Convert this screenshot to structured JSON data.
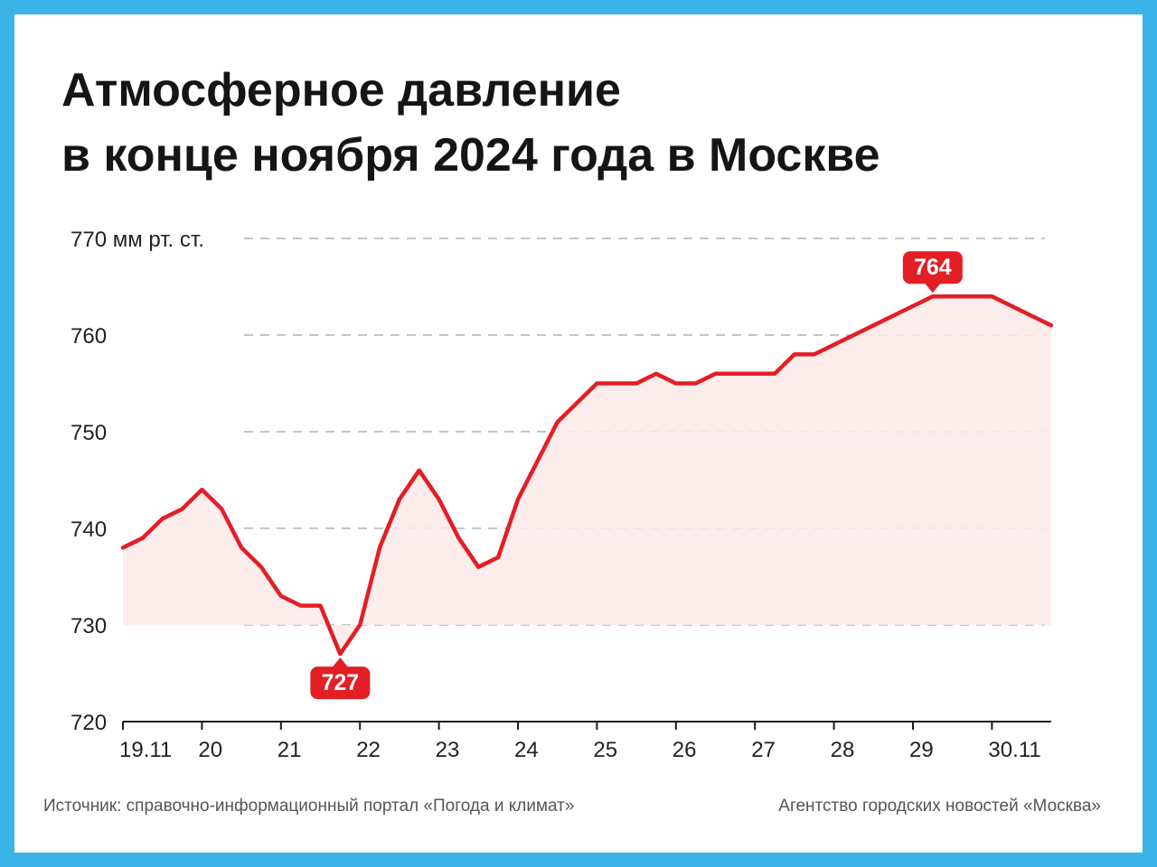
{
  "title_line1": "Атмосферное давление",
  "title_line2": "в конце ноября 2024 года в Москве",
  "footer": {
    "source": "Источник: справочно-информационный портал «Погода и климат»",
    "agency": "Агентство городских новостей «Москва»"
  },
  "colors": {
    "frame": "#3ab4e8",
    "line": "#e31e24",
    "fill": "#fde9e9",
    "grid": "#a9b3bf",
    "text": "#222222"
  },
  "chart_data": {
    "type": "line",
    "title": "Атмосферное давление в конце ноября 2024 года в Москве",
    "xlabel": "",
    "ylabel": "мм рт. ст.",
    "ylim": [
      720,
      770
    ],
    "y_ticks": [
      720,
      730,
      740,
      750,
      760,
      770
    ],
    "y_tick_labels": [
      "720",
      "730",
      "740",
      "750",
      "760",
      "770 мм рт. ст."
    ],
    "x_ticks": [
      0,
      1,
      2,
      3,
      4,
      5,
      6,
      7,
      8,
      9,
      10,
      11
    ],
    "x_tick_labels": [
      "19.11",
      "20",
      "21",
      "22",
      "23",
      "24",
      "25",
      "26",
      "27",
      "28",
      "29",
      "30.11"
    ],
    "grid": true,
    "series": [
      {
        "x": [
          0,
          0.25,
          0.5,
          0.75,
          1,
          1.25,
          1.5,
          1.75,
          2,
          2.25,
          2.5,
          2.75,
          3,
          3.25,
          3.5,
          3.75,
          4,
          4.25,
          4.5,
          4.75,
          5,
          5.25,
          5.5,
          5.75,
          6,
          6.25,
          6.5,
          6.75,
          7,
          7.25,
          7.5,
          7.75,
          8,
          8.25,
          8.5,
          8.75,
          9,
          9.25,
          9.5,
          9.75,
          10,
          10.25,
          10.5,
          10.75,
          11,
          11.25,
          11.5,
          11.75
        ],
        "values": [
          738,
          739,
          741,
          742,
          744,
          742,
          738,
          736,
          733,
          732,
          732,
          727,
          730,
          738,
          743,
          746,
          743,
          739,
          736,
          737,
          743,
          747,
          751,
          753,
          755,
          755,
          755,
          756,
          755,
          755,
          756,
          756,
          756,
          756,
          758,
          758,
          759,
          760,
          761,
          762,
          763,
          764,
          764,
          764,
          764,
          763,
          762,
          761
        ]
      }
    ],
    "annotations": [
      {
        "x": 2.75,
        "y": 727,
        "text": "727",
        "placement": "below"
      },
      {
        "x": 10.25,
        "y": 764,
        "text": "764",
        "placement": "above"
      }
    ]
  }
}
